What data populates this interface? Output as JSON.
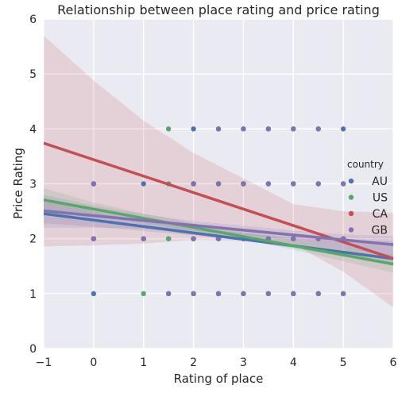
{
  "chart_data": {
    "type": "scatter",
    "title": "Relationship between place rating and price rating",
    "xlabel": "Rating of place",
    "ylabel": "Price Rating",
    "xlim": [
      -1,
      6
    ],
    "ylim": [
      0,
      6
    ],
    "xticks": [
      "−1",
      "0",
      "1",
      "2",
      "3",
      "4",
      "5",
      "6"
    ],
    "yticks": [
      "0",
      "1",
      "2",
      "3",
      "4",
      "5",
      "6"
    ],
    "grid": true,
    "legend_title": "country",
    "legend_placement": "right",
    "colors": {
      "background": "#eaeaf2",
      "grid": "#ffffff",
      "AU": "#4c72b0",
      "US": "#55a868",
      "CA": "#c44e52",
      "GB": "#8172b2"
    },
    "series": [
      {
        "name": "AU",
        "points": [
          [
            0,
            1
          ],
          [
            0,
            2
          ],
          [
            0,
            3
          ],
          [
            1,
            2
          ],
          [
            1,
            3
          ],
          [
            1.5,
            1
          ],
          [
            1.5,
            2
          ],
          [
            2,
            1
          ],
          [
            2,
            2
          ],
          [
            2,
            3
          ],
          [
            2,
            4
          ],
          [
            2.5,
            1
          ],
          [
            2.5,
            2
          ],
          [
            2.5,
            3
          ],
          [
            2.5,
            4
          ],
          [
            3,
            1
          ],
          [
            3,
            2
          ],
          [
            3,
            3
          ],
          [
            3,
            4
          ],
          [
            3.5,
            1
          ],
          [
            3.5,
            2
          ],
          [
            3.5,
            3
          ],
          [
            3.5,
            4
          ],
          [
            4,
            1
          ],
          [
            4,
            2
          ],
          [
            4,
            3
          ],
          [
            4,
            4
          ],
          [
            4.5,
            1
          ],
          [
            4.5,
            2
          ],
          [
            4.5,
            3
          ],
          [
            4.5,
            4
          ],
          [
            5,
            1
          ],
          [
            5,
            2
          ],
          [
            5,
            3
          ],
          [
            5,
            4
          ]
        ],
        "fit": {
          "intercept": 2.34,
          "slope": -0.117
        },
        "ci": [
          [
            -1,
            2.28,
            2.72
          ],
          [
            0,
            2.22,
            2.5
          ],
          [
            1,
            2.14,
            2.32
          ],
          [
            2,
            2.06,
            2.2
          ],
          [
            3,
            1.97,
            2.1
          ],
          [
            4,
            1.83,
            2.03
          ],
          [
            5,
            1.68,
            1.98
          ],
          [
            6,
            1.52,
            1.95
          ]
        ]
      },
      {
        "name": "US",
        "points": [
          [
            0,
            2
          ],
          [
            0,
            3
          ],
          [
            1,
            1
          ],
          [
            1,
            2
          ],
          [
            1.5,
            2
          ],
          [
            1.5,
            3
          ],
          [
            1.5,
            4
          ],
          [
            2,
            1
          ],
          [
            2,
            2
          ],
          [
            2,
            3
          ],
          [
            2.5,
            1
          ],
          [
            2.5,
            2
          ],
          [
            2.5,
            3
          ],
          [
            3,
            1
          ],
          [
            3,
            2
          ],
          [
            3,
            3
          ],
          [
            3.5,
            1
          ],
          [
            3.5,
            2
          ],
          [
            3.5,
            3
          ],
          [
            4,
            1
          ],
          [
            4,
            2
          ],
          [
            4,
            3
          ],
          [
            4.5,
            1
          ],
          [
            4.5,
            2
          ],
          [
            4.5,
            3
          ],
          [
            5,
            1
          ],
          [
            5,
            2
          ]
        ],
        "fit": {
          "intercept": 2.54,
          "slope": -0.167
        },
        "ci": [
          [
            -1,
            2.52,
            2.92
          ],
          [
            0,
            2.42,
            2.66
          ],
          [
            1,
            2.29,
            2.46
          ],
          [
            2,
            2.14,
            2.28
          ],
          [
            3,
            1.98,
            2.12
          ],
          [
            4,
            1.8,
            1.97
          ],
          [
            5,
            1.59,
            1.84
          ],
          [
            6,
            1.38,
            1.71
          ]
        ]
      },
      {
        "name": "CA",
        "points": [
          [
            0,
            2
          ],
          [
            1,
            2
          ],
          [
            2,
            2
          ],
          [
            2,
            3
          ],
          [
            2.5,
            2
          ],
          [
            3,
            2
          ],
          [
            3,
            3
          ],
          [
            4,
            2
          ],
          [
            4.5,
            2
          ]
        ],
        "fit": {
          "intercept": 3.44,
          "slope": -0.3
        },
        "ci": [
          [
            -1,
            1.86,
            5.7
          ],
          [
            0,
            1.88,
            4.88
          ],
          [
            1,
            1.91,
            4.15
          ],
          [
            2,
            1.98,
            3.56
          ],
          [
            3,
            1.96,
            3.1
          ],
          [
            4,
            1.9,
            2.63
          ],
          [
            5,
            1.4,
            2.5
          ],
          [
            6,
            0.75,
            2.47
          ]
        ]
      },
      {
        "name": "GB",
        "points": [
          [
            0,
            2
          ],
          [
            0,
            3
          ],
          [
            1,
            2
          ],
          [
            1.5,
            1
          ],
          [
            2,
            1
          ],
          [
            2,
            2
          ],
          [
            2,
            3
          ],
          [
            2.5,
            1
          ],
          [
            2.5,
            2
          ],
          [
            2.5,
            3
          ],
          [
            2.5,
            4
          ],
          [
            3,
            1
          ],
          [
            3,
            2
          ],
          [
            3,
            3
          ],
          [
            3,
            4
          ],
          [
            3.5,
            1
          ],
          [
            3.5,
            2
          ],
          [
            3.5,
            3
          ],
          [
            3.5,
            4
          ],
          [
            4,
            1
          ],
          [
            4,
            2
          ],
          [
            4,
            3
          ],
          [
            4,
            4
          ],
          [
            4.5,
            1
          ],
          [
            4.5,
            2
          ],
          [
            4.5,
            3
          ],
          [
            4.5,
            4
          ],
          [
            5,
            1
          ],
          [
            5,
            2
          ],
          [
            5,
            3
          ]
        ],
        "fit": {
          "intercept": 2.42,
          "slope": -0.088
        },
        "ci": [
          [
            -1,
            2.2,
            2.8
          ],
          [
            0,
            2.2,
            2.6
          ],
          [
            1,
            2.18,
            2.45
          ],
          [
            2,
            2.14,
            2.32
          ],
          [
            3,
            2.07,
            2.24
          ],
          [
            4,
            1.97,
            2.15
          ],
          [
            5,
            1.84,
            2.08
          ],
          [
            6,
            1.68,
            2.05
          ]
        ]
      }
    ]
  }
}
